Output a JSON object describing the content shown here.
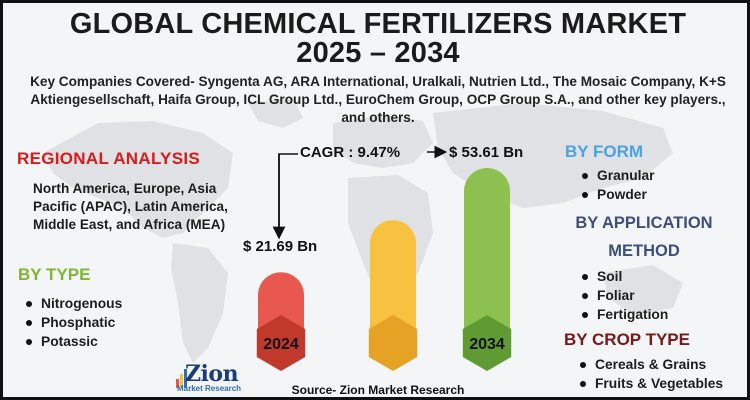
{
  "header": {
    "title_line1": "GLOBAL CHEMICAL FERTILIZERS MARKET",
    "title_line2": "2025 – 2034",
    "subtitle": "Key Companies Covered- Syngenta AG, ARA International, Uralkali, Nutrien Ltd., The Mosaic Company, K+S Aktiengesellschaft, Haifa Group, ICL Group Ltd., EuroChem Group, OCP Group S.A., and other key players., and others."
  },
  "regional": {
    "heading": "REGIONAL ANALYSIS",
    "text": "North America, Europe, Asia Pacific (APAC), Latin America, Middle East, and Africa (MEA)"
  },
  "by_type": {
    "heading": "BY TYPE",
    "items": [
      "Nitrogenous",
      "Phosphatic",
      "Potassic"
    ]
  },
  "by_form": {
    "heading": "BY FORM",
    "items": [
      "Granular",
      "Powder"
    ]
  },
  "by_application": {
    "heading_line1": "BY APPLICATION",
    "heading_line2": "METHOD",
    "items": [
      "Soil",
      "Foliar",
      "Fertigation"
    ]
  },
  "by_crop": {
    "heading": "BY CROP TYPE",
    "items": [
      "Cereals & Grains",
      "Fruits & Vegetables"
    ]
  },
  "chart_data": {
    "type": "bar",
    "categories": [
      "2024",
      "",
      "2034"
    ],
    "values": [
      21.69,
      null,
      53.61
    ],
    "value_labels": [
      "$ 21.69 Bn",
      "",
      "$ 53.61 Bn"
    ],
    "cagr_label": "CAGR : 9.47%",
    "colors": [
      "#e8584f",
      "#f7c23f",
      "#8cc152"
    ],
    "label_colors": [
      "#c0392b",
      "#e6a224",
      "#5f9a33"
    ]
  },
  "source": "Source- Zion Market Research",
  "logo": {
    "word": "Zion",
    "sub": "Market Research"
  }
}
